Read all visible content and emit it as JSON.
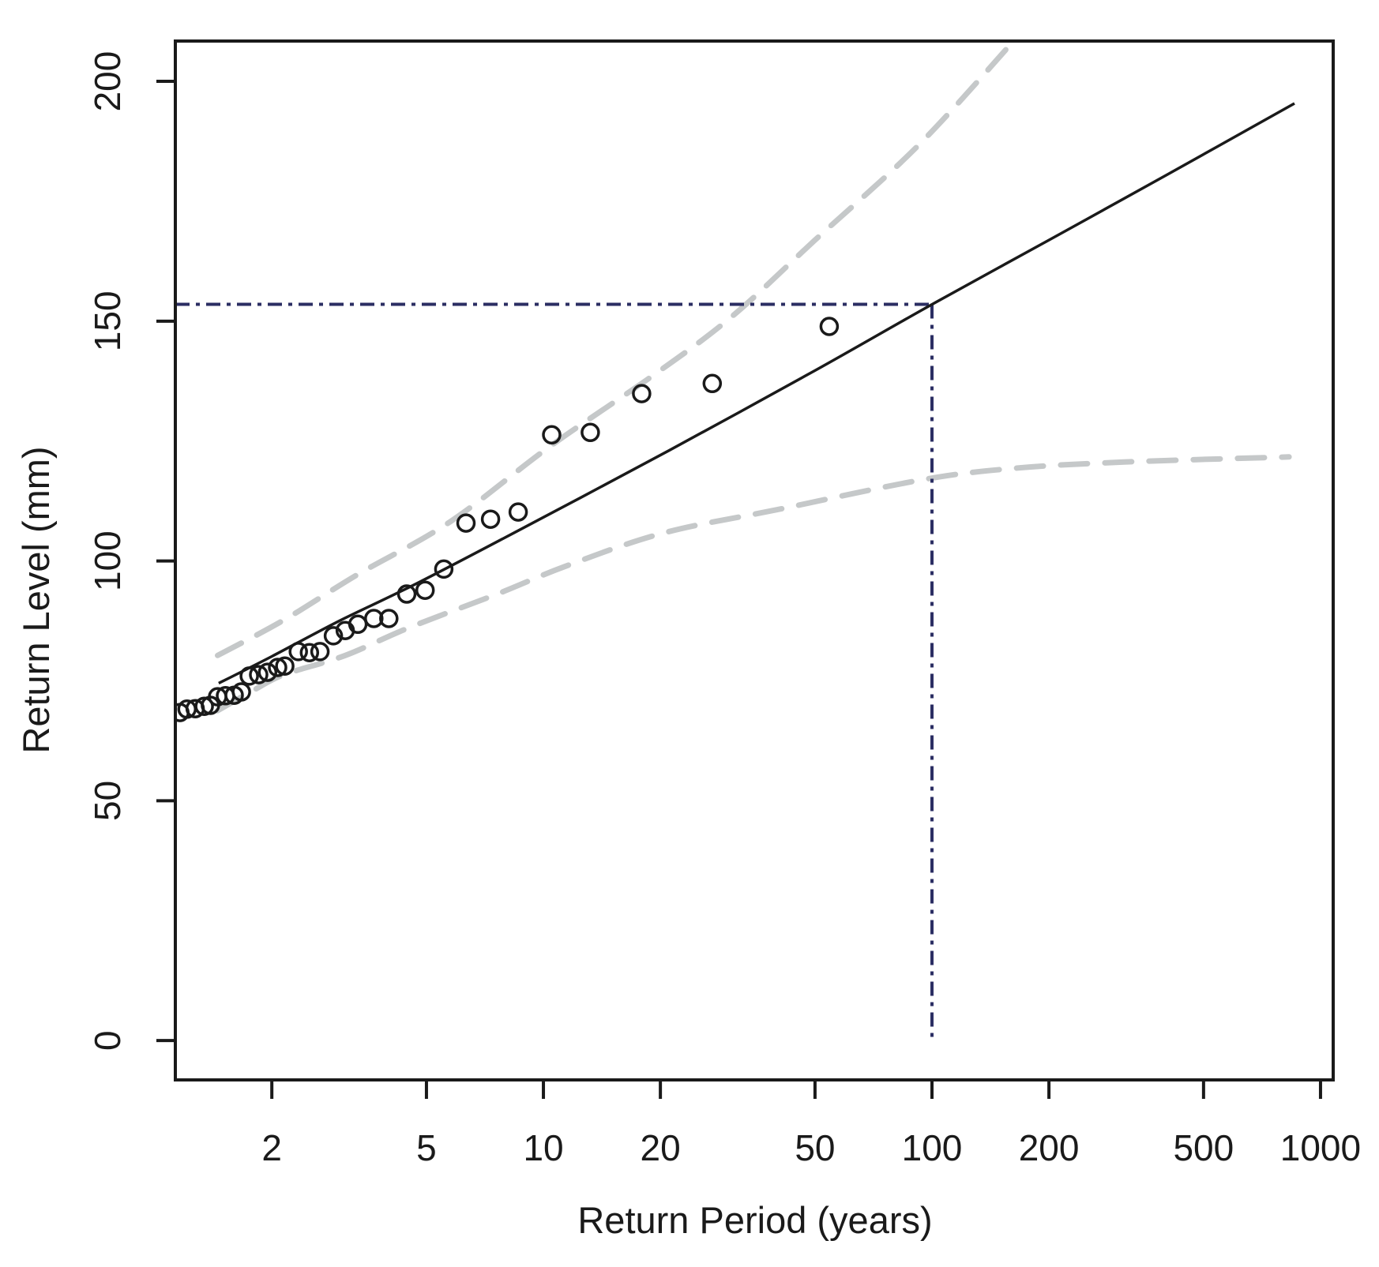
{
  "chart_data": {
    "type": "line",
    "title": "",
    "xlabel": "Return Period (years)",
    "ylabel": "Return Level (mm)",
    "x_scale": "log",
    "x_ticks": [
      2,
      5,
      10,
      20,
      50,
      100,
      200,
      500,
      1000
    ],
    "y_ticks": [
      0,
      50,
      100,
      150,
      200
    ],
    "xlim": [
      1.129,
      1078
    ],
    "ylim": [
      -8.2,
      208.4
    ],
    "grid": "off",
    "legend": "none",
    "colors": {
      "fitted_line": "#1a1a1a",
      "confidence_band": "#c5c8c9",
      "reference_line": "#2b2e63",
      "marker": "#1a1a1a",
      "background": "#ffffff"
    },
    "series": [
      {
        "name": "fitted-return-level",
        "style": "solid",
        "points": [
          [
            1.46,
            74.5
          ],
          [
            2,
            80.1
          ],
          [
            3,
            87.6
          ],
          [
            4.8,
            95.6
          ],
          [
            10,
            109.1
          ],
          [
            21,
            123.0
          ],
          [
            50,
            139.7
          ],
          [
            100,
            153.5
          ],
          [
            200,
            166.9
          ],
          [
            400,
            180.4
          ],
          [
            857,
            195.4
          ]
        ]
      },
      {
        "name": "upper-95ci",
        "style": "dashed",
        "points": [
          [
            1.45,
            80.3
          ],
          [
            2.15,
            87.7
          ],
          [
            3.33,
            97.2
          ],
          [
            5.76,
            108.2
          ],
          [
            10.4,
            123.9
          ],
          [
            19.4,
            139.0
          ],
          [
            30.6,
            151.0
          ],
          [
            50,
            166.9
          ],
          [
            92.4,
            186.7
          ],
          [
            163,
            208.6
          ]
        ]
      },
      {
        "name": "lower-95ci",
        "style": "dashed",
        "points": [
          [
            1.45,
            68.8
          ],
          [
            1.81,
            73.2
          ],
          [
            2.15,
            76.3
          ],
          [
            3.09,
            80.3
          ],
          [
            4.48,
            86.0
          ],
          [
            7.6,
            93.1
          ],
          [
            11.4,
            98.9
          ],
          [
            20.3,
            105.8
          ],
          [
            40,
            110.7
          ],
          [
            94,
            116.9
          ],
          [
            162,
            119.3
          ],
          [
            308,
            120.6
          ],
          [
            830,
            121.7
          ]
        ]
      }
    ],
    "scatter": {
      "name": "empirical-return-levels",
      "marker": "open-circle",
      "points": [
        [
          1.16,
          68.4
        ],
        [
          1.21,
          69.1
        ],
        [
          1.27,
          69.2
        ],
        [
          1.34,
          69.7
        ],
        [
          1.39,
          69.9
        ],
        [
          1.45,
          71.7
        ],
        [
          1.52,
          71.9
        ],
        [
          1.6,
          72.0
        ],
        [
          1.67,
          72.7
        ],
        [
          1.75,
          76.0
        ],
        [
          1.85,
          76.3
        ],
        [
          1.95,
          76.8
        ],
        [
          2.07,
          77.8
        ],
        [
          2.16,
          78.1
        ],
        [
          2.34,
          81.1
        ],
        [
          2.5,
          80.9
        ],
        [
          2.66,
          81.1
        ],
        [
          2.88,
          84.4
        ],
        [
          3.09,
          85.5
        ],
        [
          3.33,
          86.8
        ],
        [
          3.66,
          88.0
        ],
        [
          4.0,
          88.0
        ],
        [
          4.45,
          93.1
        ],
        [
          4.96,
          93.9
        ],
        [
          5.54,
          98.3
        ],
        [
          6.32,
          107.9
        ],
        [
          7.31,
          108.7
        ],
        [
          8.61,
          110.2
        ],
        [
          10.5,
          126.3
        ],
        [
          13.2,
          126.8
        ],
        [
          17.9,
          134.9
        ],
        [
          27.2,
          137.0
        ],
        [
          54.4,
          148.9
        ]
      ]
    },
    "reference": {
      "style": "dash-dot",
      "return_period": 100,
      "return_level": 153.5,
      "horizontal": {
        "level": 153.5,
        "to_period": 100
      },
      "vertical": {
        "period": 100,
        "from_level": 0,
        "to_level": 153.5
      }
    }
  }
}
